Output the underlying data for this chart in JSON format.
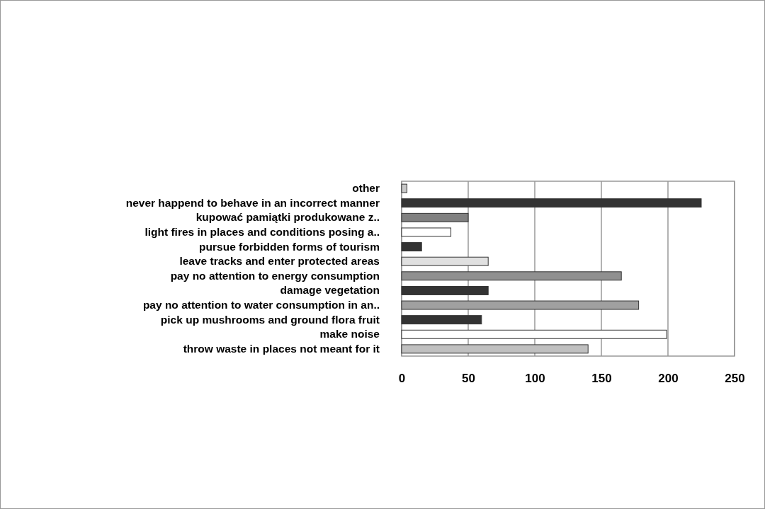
{
  "chart_data": {
    "type": "bar",
    "orientation": "horizontal",
    "categories": [
      "other",
      "never happend to behave in an incorrect manner",
      "kupować pamiątki produkowane z..",
      "light fires in places and conditions posing a..",
      "pursue forbidden forms of tourism",
      "leave tracks and enter protected areas",
      "pay no attention to energy consumption",
      "damage vegetation",
      "pay no attention to water consumption in an..",
      "pick up mushrooms and ground flora fruit",
      "make noise",
      "throw waste in places not meant for it"
    ],
    "values": [
      4,
      225,
      50,
      37,
      15,
      65,
      165,
      65,
      178,
      60,
      199,
      140
    ],
    "colors": [
      "#c8c8c8",
      "#333333",
      "#808080",
      "#ffffff",
      "#333333",
      "#e0e0e0",
      "#909090",
      "#333333",
      "#a0a0a0",
      "#333333",
      "#ffffff",
      "#c0c0c0"
    ],
    "xlim": [
      0,
      250
    ],
    "xticks": [
      0,
      50,
      100,
      150,
      200,
      250
    ],
    "grid": "x"
  }
}
